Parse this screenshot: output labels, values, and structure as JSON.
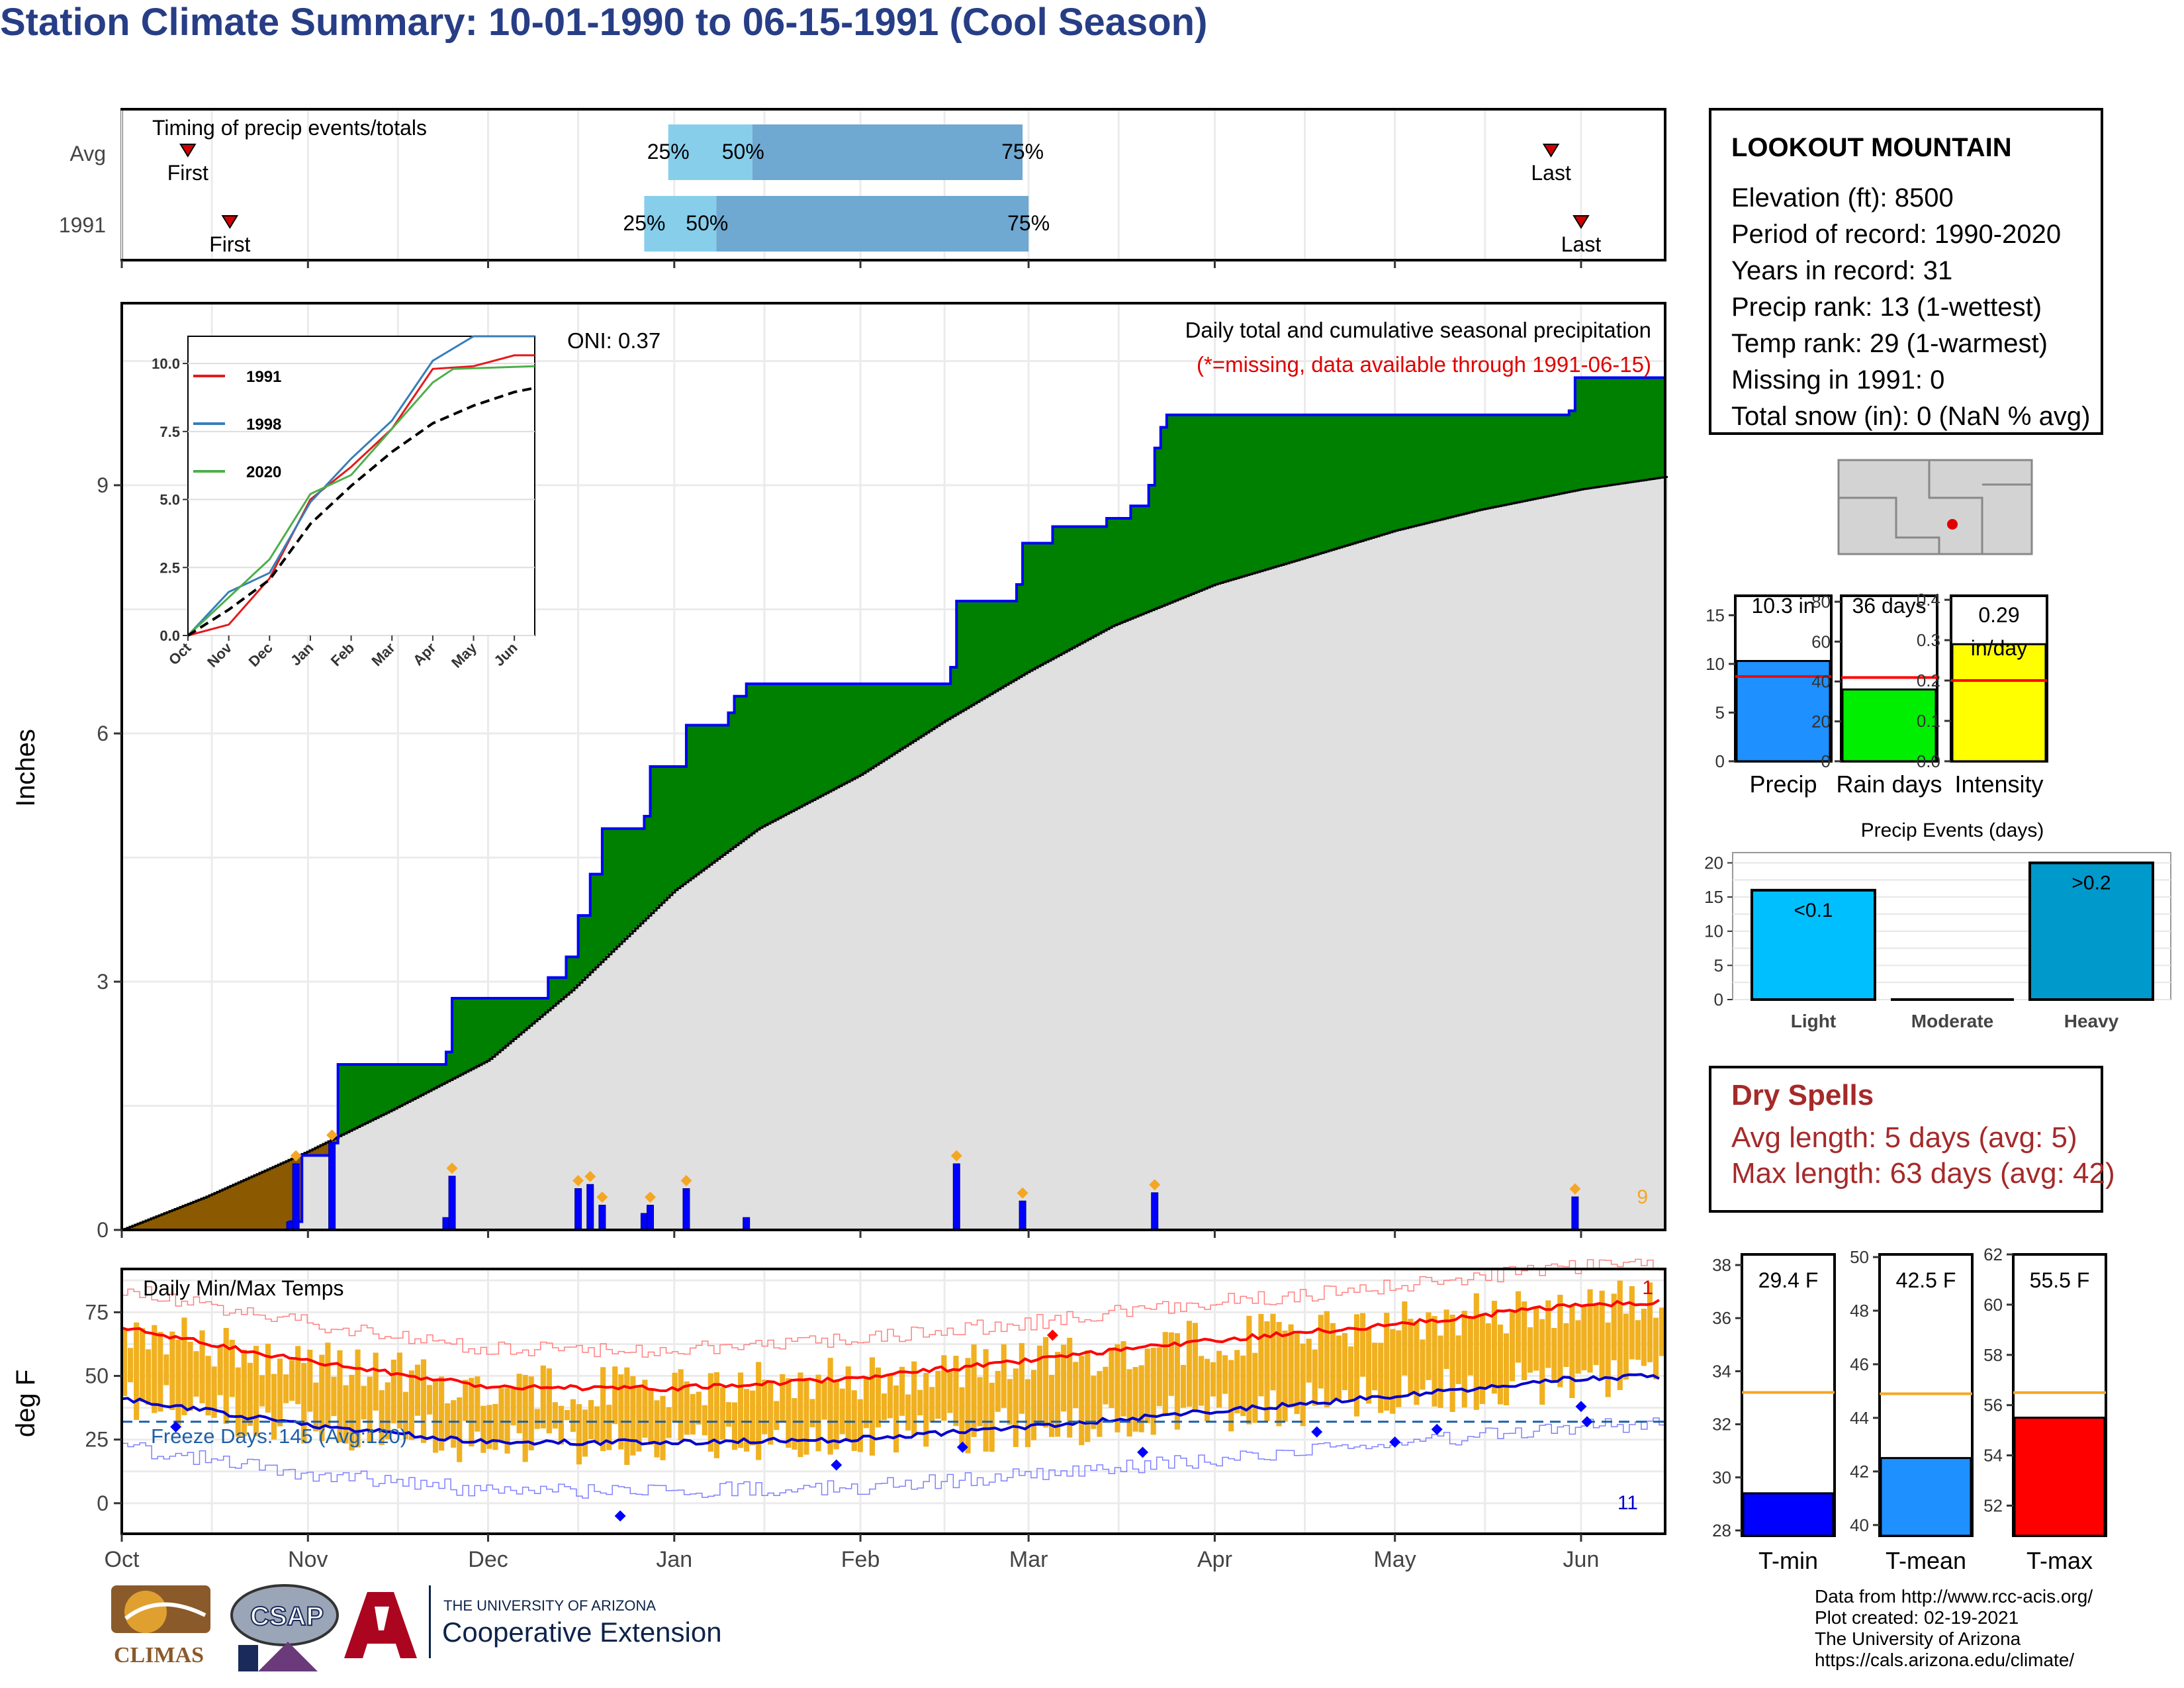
{
  "title": "Station Climate Summary: 10-01-1990 to 06-15-1991 (Cool Season)",
  "station": {
    "name": "LOOKOUT MOUNTAIN",
    "lines": [
      "Elevation (ft): 8500",
      "Period of record: 1990-2020",
      "Years in record: 31",
      "Precip rank: 13 (1-wettest)",
      "Temp rank: 29 (1-warmest)",
      "Missing in 1991: 0",
      "Total snow (in): 0 (NaN % avg)"
    ]
  },
  "timing": {
    "title": "Timing of precip events/totals",
    "rows": [
      {
        "label": "Avg",
        "first": "First",
        "last": "Last",
        "q25": "25%",
        "q50": "50%",
        "q75": "75%",
        "first_date": "1990-10-12",
        "last_date": "1991-05-27",
        "q25_date": "1990-12-31",
        "q50_date": "1991-01-14",
        "q75_date": "1991-02-28"
      },
      {
        "label": "1991",
        "first": "First",
        "last": "Last",
        "q25": "25%",
        "q50": "50%",
        "q75": "75%",
        "first_date": "1990-10-19",
        "last_date": "1991-06-01",
        "q25_date": "1990-12-27",
        "q50_date": "1991-01-08",
        "q75_date": "1991-03-01"
      }
    ],
    "colors": {
      "light": "#87ceeb",
      "dark": "#6fa8d0",
      "marker": "#d10000"
    }
  },
  "precip": {
    "ylabel": "Inches",
    "title": "Daily total and cumulative seasonal precipitation",
    "subtitle": "(*=missing, data available through 1991-06-15)",
    "oni": "ONI: 0.37",
    "corner_count": "9",
    "yticks": [
      "0",
      "3",
      "6",
      "9"
    ],
    "ylim": [
      0,
      11.2
    ]
  },
  "inset": {
    "legend": [
      "1991",
      "1998",
      "2020"
    ],
    "colors": [
      "#e41a1c",
      "#377eb8",
      "#4daf4a"
    ],
    "yticks": [
      "0.0",
      "2.5",
      "5.0",
      "7.5",
      "10.0"
    ],
    "xticks": [
      "Oct",
      "Nov",
      "Dec",
      "Jan",
      "Feb",
      "Mar",
      "Apr",
      "May",
      "Jun"
    ]
  },
  "temps": {
    "ylabel": "deg F",
    "title": "Daily Min/Max Temps",
    "freeze": "Freeze Days: 145 (Avg:120)",
    "count_hot": "1",
    "count_cold": "11",
    "yticks": [
      "0",
      "25",
      "50",
      "75"
    ],
    "xticks": [
      "Oct",
      "Nov",
      "Dec",
      "Jan",
      "Feb",
      "Mar",
      "Apr",
      "May",
      "Jun"
    ]
  },
  "summary_bars": [
    {
      "name": "Precip",
      "label": "10.3 in",
      "value": 10.3,
      "avg": 8.7,
      "ymax": 17,
      "ticks": [
        "0",
        "5",
        "10",
        "15"
      ],
      "color": "#1e90ff"
    },
    {
      "name": "Rain days",
      "label": "36 days",
      "value": 36,
      "avg": 42,
      "ymax": 83,
      "ticks": [
        "0",
        "20",
        "40",
        "60",
        "80"
      ],
      "color": "#00ee00"
    },
    {
      "name": "Intensity",
      "label": "0.29",
      "label2": "in/day",
      "value": 0.29,
      "avg": 0.2,
      "ymax": 0.41,
      "ticks": [
        "0.0",
        "0.1",
        "0.2",
        "0.3",
        "0.4"
      ],
      "color": "#ffff00"
    }
  ],
  "events": {
    "title": "Precip Events (days)",
    "categories": [
      "Light",
      "Moderate",
      "Heavy"
    ],
    "values": [
      16,
      0,
      20
    ],
    "labels": [
      "<0.1",
      "",
      ">0.2"
    ],
    "ticks": [
      "0",
      "5",
      "10",
      "15",
      "20"
    ],
    "colors": [
      "#00bfff",
      "#00bfff",
      "#0099cc"
    ]
  },
  "temp_bars": [
    {
      "name": "T-min",
      "label": "29.4 F",
      "value": 29.4,
      "avg": 33.2,
      "ymin": 27.8,
      "ymax": 38.4,
      "ticks": [
        "28",
        "30",
        "32",
        "34",
        "36",
        "38"
      ],
      "color": "#0000ff"
    },
    {
      "name": "T-mean",
      "label": "42.5 F",
      "value": 42.5,
      "avg": 44.9,
      "ymin": 39.6,
      "ymax": 50.1,
      "ticks": [
        "40",
        "42",
        "44",
        "46",
        "48",
        "50"
      ],
      "color": "#1e90ff"
    },
    {
      "name": "T-max",
      "label": "55.5 F",
      "value": 55.5,
      "avg": 56.5,
      "ymin": 50.8,
      "ymax": 62.0,
      "ticks": [
        "52",
        "54",
        "56",
        "58",
        "60",
        "62"
      ],
      "color": "#ff0000"
    }
  ],
  "dry_spells": {
    "title": "Dry Spells",
    "avg": "Avg length: 5 days (avg: 5)",
    "max": "Max length: 63 days (avg: 42)"
  },
  "logos": {
    "climas": "CLIMAS",
    "csap": "CSAP",
    "ua_line1": "THE UNIVERSITY OF ARIZONA",
    "ua_line2": "Cooperative Extension"
  },
  "credits": [
    "Data from http://www.rcc-acis.org/",
    "Plot created: 02-19-2021",
    "The University of Arizona",
    "https://cals.arizona.edu/climate/"
  ],
  "chart_data": [
    {
      "type": "area",
      "title": "Daily total and cumulative seasonal precipitation",
      "ylabel": "Inches",
      "ylim": [
        0,
        11.2
      ],
      "xticks": [
        "Oct",
        "Nov",
        "Dec",
        "Jan",
        "Feb",
        "Mar",
        "Apr",
        "May",
        "Jun"
      ],
      "series": [
        {
          "name": "cumulative 1991",
          "points": [
            [
              "1990-10-01",
              0
            ],
            [
              "1990-10-29",
              0.1
            ],
            [
              "1990-10-31",
              0.9
            ],
            [
              "1990-11-05",
              1.05
            ],
            [
              "1990-11-06",
              2.0
            ],
            [
              "1990-11-24",
              2.15
            ],
            [
              "1990-11-25",
              2.8
            ],
            [
              "1990-12-10",
              2.8
            ],
            [
              "1990-12-11",
              3.05
            ],
            [
              "1990-12-14",
              3.3
            ],
            [
              "1990-12-16",
              3.8
            ],
            [
              "1990-12-18",
              4.3
            ],
            [
              "1990-12-20",
              4.85
            ],
            [
              "1990-12-27",
              5.0
            ],
            [
              "1990-12-28",
              5.6
            ],
            [
              "1991-01-02",
              5.6
            ],
            [
              "1991-01-03",
              6.1
            ],
            [
              "1991-01-10",
              6.25
            ],
            [
              "1991-01-11",
              6.45
            ],
            [
              "1991-01-13",
              6.6
            ],
            [
              "1991-02-16",
              6.8
            ],
            [
              "1991-02-17",
              7.6
            ],
            [
              "1991-02-27",
              7.8
            ],
            [
              "1991-02-28",
              8.3
            ],
            [
              "1991-03-05",
              8.5
            ],
            [
              "1991-03-14",
              8.6
            ],
            [
              "1991-03-18",
              8.75
            ],
            [
              "1991-03-21",
              9.0
            ],
            [
              "1991-03-22",
              9.45
            ],
            [
              "1991-03-23",
              9.7
            ],
            [
              "1991-03-24",
              9.85
            ],
            [
              "1991-05-30",
              9.9
            ],
            [
              "1991-05-31",
              10.3
            ],
            [
              "1991-06-15",
              10.3
            ]
          ]
        },
        {
          "name": "average",
          "points": [
            [
              "1990-10-01",
              0
            ],
            [
              "1990-10-15",
              0.4
            ],
            [
              "1990-11-01",
              0.95
            ],
            [
              "1990-11-15",
              1.45
            ],
            [
              "1990-12-01",
              2.05
            ],
            [
              "1990-12-15",
              2.9
            ],
            [
              "1991-01-01",
              4.1
            ],
            [
              "1991-01-15",
              4.85
            ],
            [
              "1991-02-01",
              5.5
            ],
            [
              "1991-02-15",
              6.15
            ],
            [
              "1991-03-01",
              6.75
            ],
            [
              "1991-03-15",
              7.3
            ],
            [
              "1991-04-01",
              7.8
            ],
            [
              "1991-04-15",
              8.1
            ],
            [
              "1991-05-01",
              8.45
            ],
            [
              "1991-05-15",
              8.7
            ],
            [
              "1991-06-01",
              8.95
            ],
            [
              "1991-06-15",
              9.1
            ]
          ]
        },
        {
          "name": "daily",
          "points": [
            [
              "1990-10-29",
              0.1
            ],
            [
              "1990-10-30",
              0.8
            ],
            [
              "1990-11-05",
              1.05
            ],
            [
              "1990-11-24",
              0.15
            ],
            [
              "1990-11-25",
              0.65
            ],
            [
              "1990-12-16",
              0.5
            ],
            [
              "1990-12-18",
              0.55
            ],
            [
              "1990-12-20",
              0.3
            ],
            [
              "1990-12-27",
              0.2
            ],
            [
              "1990-12-28",
              0.3
            ],
            [
              "1991-01-03",
              0.5
            ],
            [
              "1991-01-13",
              0.15
            ],
            [
              "1991-02-17",
              0.8
            ],
            [
              "1991-02-28",
              0.35
            ],
            [
              "1991-03-22",
              0.45
            ],
            [
              "1991-05-31",
              0.4
            ]
          ]
        }
      ]
    },
    {
      "type": "line",
      "title": "inset cumulative",
      "yticks": [
        0,
        2.5,
        5.0,
        7.5,
        10.0
      ],
      "series": [
        {
          "name": "1991",
          "values": [
            [
              0,
              0
            ],
            [
              1,
              0.4
            ],
            [
              2,
              2.1
            ],
            [
              3,
              5.0
            ],
            [
              4,
              6.2
            ],
            [
              5,
              7.6
            ],
            [
              6,
              9.8
            ],
            [
              7,
              9.9
            ],
            [
              8,
              10.3
            ],
            [
              8.5,
              10.3
            ]
          ]
        },
        {
          "name": "1998",
          "values": [
            [
              0,
              0
            ],
            [
              1,
              1.6
            ],
            [
              2,
              2.3
            ],
            [
              3,
              4.9
            ],
            [
              4,
              6.5
            ],
            [
              5,
              7.9
            ],
            [
              6,
              10.1
            ],
            [
              7,
              11.0
            ],
            [
              8.5,
              11.0
            ]
          ]
        },
        {
          "name": "2020",
          "values": [
            [
              0,
              0
            ],
            [
              1,
              1.4
            ],
            [
              2,
              2.8
            ],
            [
              3,
              5.2
            ],
            [
              4,
              5.9
            ],
            [
              5,
              7.6
            ],
            [
              6,
              9.3
            ],
            [
              6.5,
              9.8
            ],
            [
              8.5,
              9.9
            ]
          ]
        },
        {
          "name": "average",
          "values": [
            [
              0,
              0
            ],
            [
              1,
              0.95
            ],
            [
              2,
              2.05
            ],
            [
              3,
              4.1
            ],
            [
              4,
              5.5
            ],
            [
              5,
              6.75
            ],
            [
              6,
              7.8
            ],
            [
              7,
              8.45
            ],
            [
              8,
              8.95
            ],
            [
              8.5,
              9.1
            ]
          ]
        }
      ]
    },
    {
      "type": "line",
      "title": "Daily Min/Max Temps",
      "ylabel": "deg F",
      "ylim": [
        -12,
        92
      ],
      "series": [
        {
          "name": "avg max",
          "values": [
            [
              0,
              69
            ],
            [
              1,
              56
            ],
            [
              2,
              46
            ],
            [
              3,
              45
            ],
            [
              4,
              49
            ],
            [
              5,
              56
            ],
            [
              6,
              64
            ],
            [
              7,
              70
            ],
            [
              8,
              78
            ],
            [
              8.5,
              79
            ]
          ]
        },
        {
          "name": "avg min",
          "values": [
            [
              0,
              41
            ],
            [
              1,
              31
            ],
            [
              2,
              24
            ],
            [
              3,
              24
            ],
            [
              4,
              25
            ],
            [
              5,
              30
            ],
            [
              6,
              36
            ],
            [
              7,
              42
            ],
            [
              8,
              49
            ],
            [
              8.5,
              50
            ]
          ]
        },
        {
          "name": "freeze threshold",
          "values": [
            [
              0,
              32
            ],
            [
              8.5,
              32
            ]
          ]
        }
      ]
    },
    {
      "type": "bar",
      "title": "summary",
      "categories": [
        "Precip",
        "Rain days",
        "Intensity"
      ],
      "values": [
        10.3,
        36,
        0.29
      ]
    },
    {
      "type": "bar",
      "title": "Precip Events (days)",
      "categories": [
        "Light",
        "Moderate",
        "Heavy"
      ],
      "values": [
        16,
        0,
        20
      ]
    },
    {
      "type": "bar",
      "title": "temperature",
      "categories": [
        "T-min",
        "T-mean",
        "T-max"
      ],
      "values": [
        29.4,
        42.5,
        55.5
      ]
    }
  ]
}
